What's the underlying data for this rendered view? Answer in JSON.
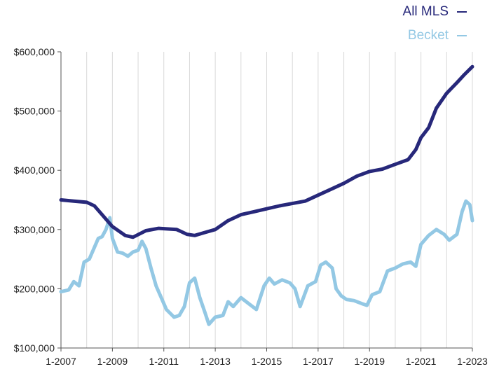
{
  "chart_data": {
    "type": "line",
    "title": "",
    "xlabel": "",
    "ylabel": "",
    "x_ticks": [
      "1-2007",
      "1-2009",
      "1-2011",
      "1-2013",
      "1-2015",
      "1-2017",
      "1-2019",
      "1-2021",
      "1-2023"
    ],
    "y_ticks": [
      "$100,000",
      "$200,000",
      "$300,000",
      "$400,000",
      "$500,000",
      "$600,000"
    ],
    "xlim": [
      2007,
      2023
    ],
    "ylim": [
      100000,
      600000
    ],
    "grid": {
      "vertical": true,
      "horizontal": false
    },
    "legend": "top-right",
    "series": [
      {
        "name": "All MLS",
        "color": "#27287a",
        "points": [
          [
            2007.0,
            350000
          ],
          [
            2007.5,
            348000
          ],
          [
            2008.0,
            346000
          ],
          [
            2008.3,
            340000
          ],
          [
            2008.6,
            325000
          ],
          [
            2009.0,
            305000
          ],
          [
            2009.5,
            290000
          ],
          [
            2009.8,
            287000
          ],
          [
            2010.3,
            298000
          ],
          [
            2010.8,
            302000
          ],
          [
            2011.5,
            300000
          ],
          [
            2011.9,
            292000
          ],
          [
            2012.2,
            290000
          ],
          [
            2012.6,
            295000
          ],
          [
            2013.0,
            300000
          ],
          [
            2013.5,
            315000
          ],
          [
            2014.0,
            325000
          ],
          [
            2014.5,
            330000
          ],
          [
            2015.0,
            335000
          ],
          [
            2015.5,
            340000
          ],
          [
            2016.0,
            344000
          ],
          [
            2016.5,
            348000
          ],
          [
            2017.0,
            358000
          ],
          [
            2017.5,
            368000
          ],
          [
            2018.0,
            378000
          ],
          [
            2018.5,
            390000
          ],
          [
            2019.0,
            398000
          ],
          [
            2019.5,
            402000
          ],
          [
            2020.0,
            410000
          ],
          [
            2020.5,
            418000
          ],
          [
            2020.8,
            435000
          ],
          [
            2021.0,
            455000
          ],
          [
            2021.3,
            472000
          ],
          [
            2021.6,
            505000
          ],
          [
            2022.0,
            530000
          ],
          [
            2022.4,
            548000
          ],
          [
            2022.7,
            562000
          ],
          [
            2023.0,
            575000
          ]
        ]
      },
      {
        "name": "Becket",
        "color": "#93c8e4",
        "points": [
          [
            2007.0,
            195000
          ],
          [
            2007.3,
            198000
          ],
          [
            2007.5,
            212000
          ],
          [
            2007.7,
            205000
          ],
          [
            2007.9,
            245000
          ],
          [
            2008.1,
            250000
          ],
          [
            2008.3,
            270000
          ],
          [
            2008.45,
            285000
          ],
          [
            2008.6,
            288000
          ],
          [
            2008.75,
            300000
          ],
          [
            2008.9,
            320000
          ],
          [
            2009.0,
            285000
          ],
          [
            2009.2,
            262000
          ],
          [
            2009.4,
            260000
          ],
          [
            2009.6,
            255000
          ],
          [
            2009.8,
            262000
          ],
          [
            2010.0,
            265000
          ],
          [
            2010.15,
            280000
          ],
          [
            2010.3,
            268000
          ],
          [
            2010.5,
            235000
          ],
          [
            2010.7,
            205000
          ],
          [
            2010.9,
            185000
          ],
          [
            2011.1,
            165000
          ],
          [
            2011.4,
            152000
          ],
          [
            2011.6,
            155000
          ],
          [
            2011.8,
            170000
          ],
          [
            2012.0,
            210000
          ],
          [
            2012.2,
            218000
          ],
          [
            2012.4,
            185000
          ],
          [
            2012.6,
            160000
          ],
          [
            2012.75,
            140000
          ],
          [
            2013.0,
            152000
          ],
          [
            2013.3,
            155000
          ],
          [
            2013.5,
            178000
          ],
          [
            2013.7,
            170000
          ],
          [
            2014.0,
            185000
          ],
          [
            2014.3,
            175000
          ],
          [
            2014.6,
            165000
          ],
          [
            2014.9,
            205000
          ],
          [
            2015.1,
            218000
          ],
          [
            2015.3,
            208000
          ],
          [
            2015.6,
            215000
          ],
          [
            2015.9,
            210000
          ],
          [
            2016.1,
            200000
          ],
          [
            2016.3,
            170000
          ],
          [
            2016.6,
            205000
          ],
          [
            2016.9,
            212000
          ],
          [
            2017.1,
            240000
          ],
          [
            2017.3,
            245000
          ],
          [
            2017.55,
            235000
          ],
          [
            2017.7,
            200000
          ],
          [
            2017.9,
            188000
          ],
          [
            2018.1,
            182000
          ],
          [
            2018.4,
            180000
          ],
          [
            2018.7,
            175000
          ],
          [
            2018.9,
            172000
          ],
          [
            2019.1,
            190000
          ],
          [
            2019.4,
            195000
          ],
          [
            2019.7,
            230000
          ],
          [
            2020.0,
            235000
          ],
          [
            2020.3,
            242000
          ],
          [
            2020.6,
            245000
          ],
          [
            2020.8,
            238000
          ],
          [
            2021.0,
            275000
          ],
          [
            2021.3,
            290000
          ],
          [
            2021.6,
            300000
          ],
          [
            2021.9,
            292000
          ],
          [
            2022.1,
            282000
          ],
          [
            2022.4,
            292000
          ],
          [
            2022.6,
            330000
          ],
          [
            2022.75,
            348000
          ],
          [
            2022.9,
            342000
          ],
          [
            2023.0,
            315000
          ]
        ]
      }
    ]
  }
}
